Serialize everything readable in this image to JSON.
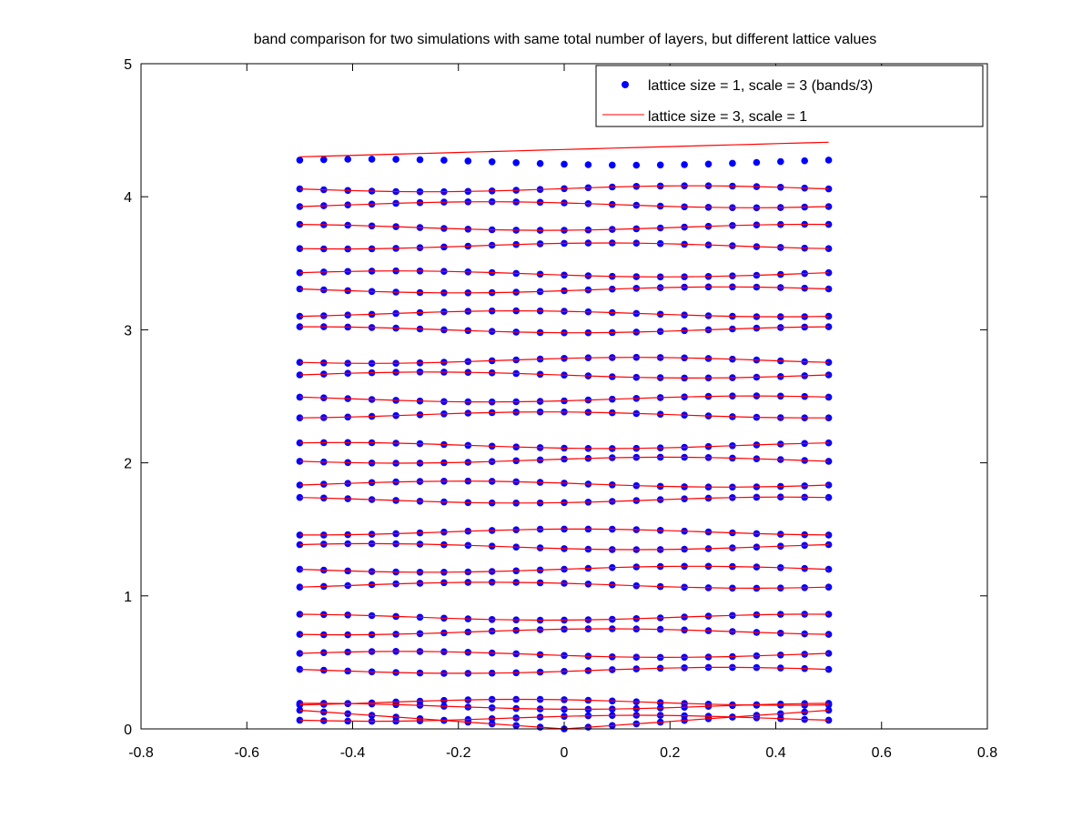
{
  "chart_data": {
    "type": "scatter",
    "title": "band comparison for two simulations with same total number of layers, but different lattice values",
    "xlabel": "",
    "ylabel": "",
    "xlim": [
      -0.8,
      0.8
    ],
    "ylim": [
      0,
      5
    ],
    "x_ticks": [
      -0.8,
      -0.6,
      -0.4,
      -0.2,
      0,
      0.2,
      0.4,
      0.6,
      0.8
    ],
    "x_tick_labels": [
      "-0.8",
      "-0.6",
      "-0.4",
      "-0.2",
      "0",
      "0.2",
      "0.4",
      "0.6",
      "0.8"
    ],
    "y_ticks": [
      0,
      1,
      2,
      3,
      4,
      5
    ],
    "y_tick_labels": [
      "0",
      "1",
      "2",
      "3",
      "4",
      "5"
    ],
    "grid": false,
    "legend_position": "top-right",
    "series": [
      {
        "name": "lattice size = 1, scale = 3 (bands/3)",
        "mark": "point",
        "color": "#0000ff",
        "x_range": [
          -0.5,
          0.5
        ],
        "n_points": 23,
        "band_levels": [
          0.0,
          0.08,
          0.17,
          0.2,
          0.44,
          0.56,
          0.73,
          0.84,
          1.08,
          1.2,
          1.37,
          1.48,
          1.72,
          1.84,
          2.02,
          2.13,
          2.36,
          2.48,
          2.66,
          2.77,
          3.0,
          3.12,
          3.3,
          3.42,
          3.63,
          3.77,
          3.94,
          4.06,
          4.26
        ]
      },
      {
        "name": "lattice size = 3, scale = 1",
        "mark": "line",
        "color": "#ff0000",
        "x_range": [
          -0.5,
          0.5
        ],
        "n_points": 23,
        "band_levels": [
          0.0,
          0.08,
          0.17,
          0.2,
          0.44,
          0.56,
          0.73,
          0.84,
          1.08,
          1.2,
          1.37,
          1.48,
          1.72,
          1.84,
          2.02,
          2.13,
          2.36,
          2.48,
          2.66,
          2.77,
          3.0,
          3.12,
          3.3,
          3.42,
          3.63,
          3.77,
          3.94,
          4.06,
          4.3
        ]
      }
    ]
  }
}
